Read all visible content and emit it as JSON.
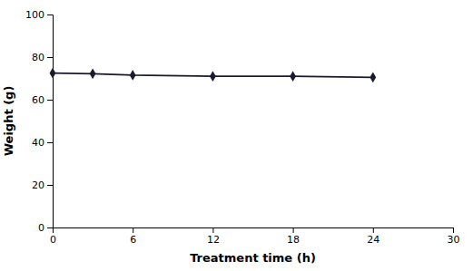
{
  "chart_data": {
    "type": "line",
    "xlabel": "Treatment time (h)",
    "ylabel": "Weight (g)",
    "x": [
      0,
      3,
      6,
      12,
      18,
      24
    ],
    "values": [
      72.5,
      72.2,
      71.5,
      71.0,
      71.0,
      70.5
    ],
    "color": "#1a1a2e",
    "marker": "diamond",
    "xlim": [
      0,
      30
    ],
    "ylim": [
      0,
      100
    ],
    "xticks": [
      0,
      6,
      12,
      18,
      24,
      30
    ],
    "yticks": [
      0,
      20,
      40,
      60,
      80,
      100
    ],
    "grid": false
  }
}
